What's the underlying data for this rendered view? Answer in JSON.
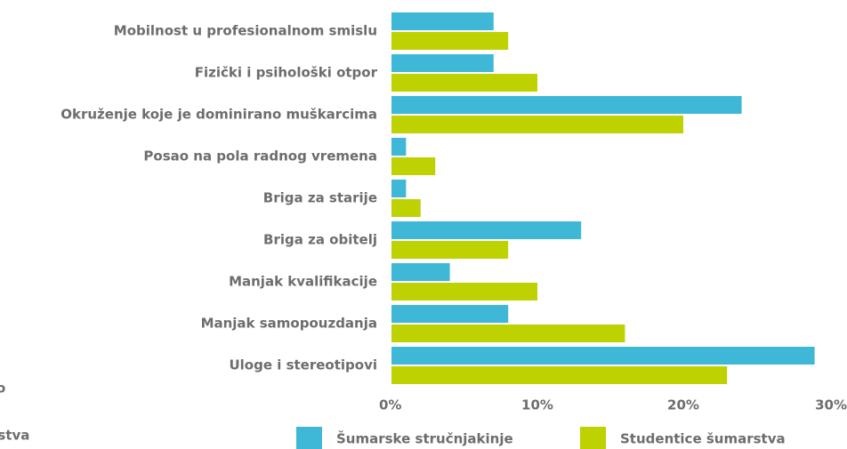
{
  "chart_data": {
    "type": "barh",
    "categories": [
      "Mobilnost u profesionalnom smislu",
      "Fizički i psihološki otpor",
      "Okruženje koje je dominirano muškarcima",
      "Posao na pola radnog vremena",
      "Briga za starije",
      "Briga za obitelj",
      "Manjak kvalifikacije",
      "Manjak samopouzdanja",
      "Uloge i stereotipovi"
    ],
    "series": [
      {
        "name": "Šumarske stručnjakinje",
        "color": "#3fb8d8",
        "values": [
          7,
          7,
          24,
          1,
          1,
          13,
          4,
          8,
          29
        ]
      },
      {
        "name": "Studentice šumarstva",
        "color": "#bdd200",
        "values": [
          8,
          10,
          20,
          3,
          2,
          8,
          10,
          16,
          23
        ]
      }
    ],
    "xlim": [
      0,
      30
    ],
    "xticks": [
      {
        "value": 0,
        "label": "0%"
      },
      {
        "value": 10,
        "label": "10%"
      },
      {
        "value": 20,
        "label": "20%"
      },
      {
        "value": 30,
        "label": "30%"
      }
    ],
    "grid": false,
    "legend": "bottom",
    "annotations": [
      "o",
      "rstva"
    ]
  }
}
